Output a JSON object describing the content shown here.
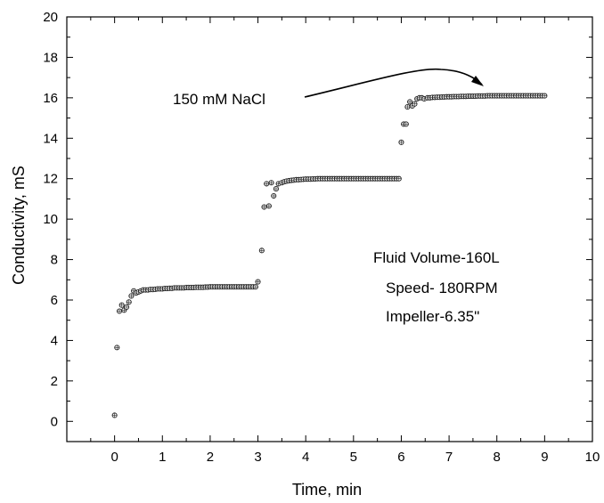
{
  "chart_data": {
    "type": "scatter",
    "xlabel": "Time, min",
    "ylabel": "Conductivity, mS",
    "xlim": [
      -1,
      10
    ],
    "ylim": [
      -1,
      20
    ],
    "xticks": [
      0,
      1,
      2,
      3,
      4,
      5,
      6,
      7,
      8,
      9,
      10
    ],
    "yticks": [
      0,
      2,
      4,
      6,
      8,
      10,
      12,
      14,
      16,
      18,
      20
    ],
    "grid": false,
    "annotations": [
      {
        "text": "150 mM NaCl",
        "arrow_to": [
          7.9,
          16.3
        ]
      },
      {
        "text": "Fluid Volume-160L"
      },
      {
        "text": "Speed- 180RPM"
      },
      {
        "text": "Impeller-6.35\""
      }
    ],
    "series": [
      {
        "points": [
          [
            0.0,
            0.3
          ],
          [
            0.05,
            3.65
          ],
          [
            0.1,
            5.45
          ],
          [
            0.15,
            5.75
          ],
          [
            0.2,
            5.5
          ],
          [
            0.25,
            5.65
          ],
          [
            0.3,
            5.9
          ],
          [
            0.35,
            6.2
          ],
          [
            0.4,
            6.45
          ],
          [
            0.45,
            6.35
          ],
          [
            0.5,
            6.4
          ],
          [
            0.55,
            6.45
          ],
          [
            0.6,
            6.5
          ],
          [
            0.65,
            6.5
          ],
          [
            0.7,
            6.5
          ],
          [
            0.75,
            6.52
          ],
          [
            0.8,
            6.52
          ],
          [
            0.85,
            6.53
          ],
          [
            0.9,
            6.55
          ],
          [
            0.95,
            6.55
          ],
          [
            1.0,
            6.55
          ],
          [
            1.05,
            6.57
          ],
          [
            1.1,
            6.57
          ],
          [
            1.15,
            6.58
          ],
          [
            1.2,
            6.58
          ],
          [
            1.25,
            6.6
          ],
          [
            1.3,
            6.6
          ],
          [
            1.35,
            6.6
          ],
          [
            1.4,
            6.6
          ],
          [
            1.45,
            6.6
          ],
          [
            1.5,
            6.62
          ],
          [
            1.55,
            6.62
          ],
          [
            1.6,
            6.62
          ],
          [
            1.65,
            6.62
          ],
          [
            1.7,
            6.63
          ],
          [
            1.75,
            6.63
          ],
          [
            1.8,
            6.63
          ],
          [
            1.85,
            6.63
          ],
          [
            1.9,
            6.64
          ],
          [
            1.95,
            6.64
          ],
          [
            2.0,
            6.65
          ],
          [
            2.05,
            6.65
          ],
          [
            2.1,
            6.65
          ],
          [
            2.15,
            6.65
          ],
          [
            2.2,
            6.65
          ],
          [
            2.25,
            6.65
          ],
          [
            2.3,
            6.65
          ],
          [
            2.35,
            6.65
          ],
          [
            2.4,
            6.65
          ],
          [
            2.45,
            6.65
          ],
          [
            2.5,
            6.65
          ],
          [
            2.55,
            6.65
          ],
          [
            2.6,
            6.65
          ],
          [
            2.65,
            6.65
          ],
          [
            2.7,
            6.65
          ],
          [
            2.75,
            6.65
          ],
          [
            2.8,
            6.65
          ],
          [
            2.85,
            6.65
          ],
          [
            2.9,
            6.65
          ],
          [
            2.95,
            6.65
          ],
          [
            3.0,
            6.9
          ],
          [
            3.08,
            8.45
          ],
          [
            3.13,
            10.6
          ],
          [
            3.18,
            11.75
          ],
          [
            3.23,
            10.65
          ],
          [
            3.28,
            11.8
          ],
          [
            3.33,
            11.15
          ],
          [
            3.38,
            11.5
          ],
          [
            3.43,
            11.75
          ],
          [
            3.5,
            11.8
          ],
          [
            3.55,
            11.85
          ],
          [
            3.6,
            11.88
          ],
          [
            3.65,
            11.9
          ],
          [
            3.7,
            11.92
          ],
          [
            3.75,
            11.93
          ],
          [
            3.8,
            11.95
          ],
          [
            3.85,
            11.95
          ],
          [
            3.9,
            11.96
          ],
          [
            3.95,
            11.97
          ],
          [
            4.0,
            11.98
          ],
          [
            4.05,
            11.98
          ],
          [
            4.1,
            11.98
          ],
          [
            4.15,
            11.99
          ],
          [
            4.2,
            11.99
          ],
          [
            4.25,
            12.0
          ],
          [
            4.3,
            12.0
          ],
          [
            4.35,
            12.0
          ],
          [
            4.4,
            12.0
          ],
          [
            4.45,
            12.0
          ],
          [
            4.5,
            12.0
          ],
          [
            4.55,
            12.0
          ],
          [
            4.6,
            12.0
          ],
          [
            4.65,
            12.0
          ],
          [
            4.7,
            12.0
          ],
          [
            4.75,
            12.0
          ],
          [
            4.8,
            12.0
          ],
          [
            4.85,
            12.0
          ],
          [
            4.9,
            12.0
          ],
          [
            4.95,
            12.0
          ],
          [
            5.0,
            12.0
          ],
          [
            5.05,
            12.0
          ],
          [
            5.1,
            12.0
          ],
          [
            5.15,
            12.0
          ],
          [
            5.2,
            12.0
          ],
          [
            5.25,
            12.0
          ],
          [
            5.3,
            12.0
          ],
          [
            5.35,
            12.0
          ],
          [
            5.4,
            12.0
          ],
          [
            5.45,
            12.0
          ],
          [
            5.5,
            12.0
          ],
          [
            5.55,
            12.0
          ],
          [
            5.6,
            12.0
          ],
          [
            5.65,
            12.0
          ],
          [
            5.7,
            12.0
          ],
          [
            5.75,
            12.0
          ],
          [
            5.8,
            12.0
          ],
          [
            5.85,
            12.0
          ],
          [
            5.9,
            12.0
          ],
          [
            5.95,
            12.0
          ],
          [
            6.0,
            13.8
          ],
          [
            6.05,
            14.7
          ],
          [
            6.1,
            14.7
          ],
          [
            6.13,
            15.55
          ],
          [
            6.18,
            15.8
          ],
          [
            6.23,
            15.6
          ],
          [
            6.28,
            15.7
          ],
          [
            6.33,
            15.95
          ],
          [
            6.38,
            16.0
          ],
          [
            6.43,
            16.0
          ],
          [
            6.48,
            15.95
          ],
          [
            6.55,
            16.0
          ],
          [
            6.6,
            16.0
          ],
          [
            6.65,
            16.02
          ],
          [
            6.7,
            16.02
          ],
          [
            6.75,
            16.03
          ],
          [
            6.8,
            16.03
          ],
          [
            6.85,
            16.04
          ],
          [
            6.9,
            16.04
          ],
          [
            6.95,
            16.05
          ],
          [
            7.0,
            16.05
          ],
          [
            7.05,
            16.05
          ],
          [
            7.1,
            16.06
          ],
          [
            7.15,
            16.06
          ],
          [
            7.2,
            16.06
          ],
          [
            7.25,
            16.07
          ],
          [
            7.3,
            16.07
          ],
          [
            7.35,
            16.07
          ],
          [
            7.4,
            16.08
          ],
          [
            7.45,
            16.08
          ],
          [
            7.5,
            16.08
          ],
          [
            7.55,
            16.08
          ],
          [
            7.6,
            16.09
          ],
          [
            7.65,
            16.09
          ],
          [
            7.7,
            16.09
          ],
          [
            7.75,
            16.09
          ],
          [
            7.8,
            16.1
          ],
          [
            7.85,
            16.1
          ],
          [
            7.9,
            16.1
          ],
          [
            7.95,
            16.1
          ],
          [
            8.0,
            16.1
          ],
          [
            8.05,
            16.1
          ],
          [
            8.1,
            16.1
          ],
          [
            8.15,
            16.1
          ],
          [
            8.2,
            16.1
          ],
          [
            8.25,
            16.1
          ],
          [
            8.3,
            16.1
          ],
          [
            8.35,
            16.1
          ],
          [
            8.4,
            16.1
          ],
          [
            8.45,
            16.1
          ],
          [
            8.5,
            16.1
          ],
          [
            8.55,
            16.1
          ],
          [
            8.6,
            16.1
          ],
          [
            8.65,
            16.1
          ],
          [
            8.7,
            16.1
          ],
          [
            8.75,
            16.1
          ],
          [
            8.8,
            16.1
          ],
          [
            8.85,
            16.1
          ],
          [
            8.9,
            16.1
          ],
          [
            8.95,
            16.1
          ],
          [
            9.0,
            16.1
          ]
        ]
      }
    ]
  }
}
